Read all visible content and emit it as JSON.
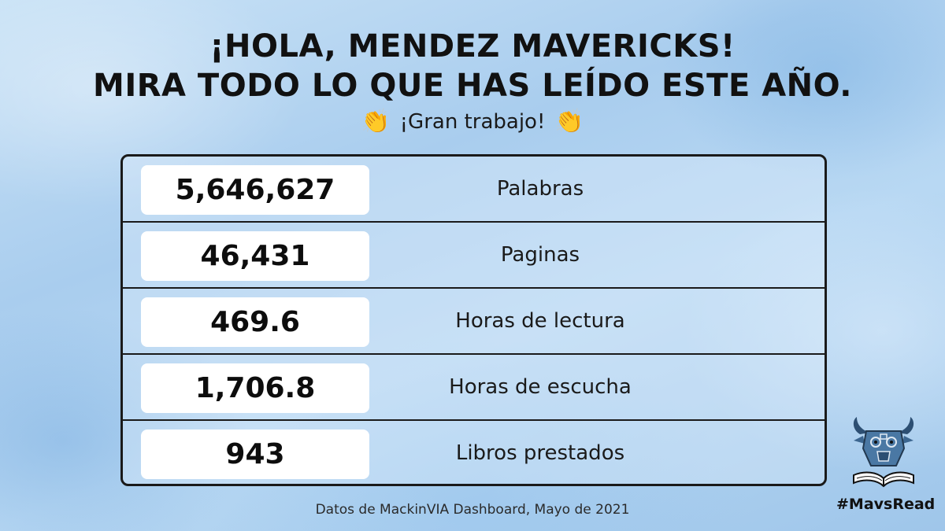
{
  "header": {
    "line1": "¡HOLA, MENDEZ MAVERICKS!",
    "line2": "MIRA TODO LO QUE HAS LEÍDO ESTE AÑO.",
    "subtitle": "¡Gran trabajo!",
    "emoji_left": "👏",
    "emoji_right": "👏"
  },
  "stats": [
    {
      "value": "5,646,627",
      "label": "Palabras"
    },
    {
      "value": "46,431",
      "label": "Paginas"
    },
    {
      "value": "469.6",
      "label": "Horas de lectura"
    },
    {
      "value": "1,706.8",
      "label": "Horas de escucha"
    },
    {
      "value": "943",
      "label": "Libros prestados"
    }
  ],
  "footer": {
    "source": "Datos de MackinVIA Dashboard, Mayo de 2021",
    "hashtag": "#MavsRead",
    "logo_icon": "maverick-bull-book-logo"
  },
  "colors": {
    "background": "#b3d4f0",
    "text": "#111111",
    "box": "#ffffff",
    "border": "#1a1a1a"
  }
}
